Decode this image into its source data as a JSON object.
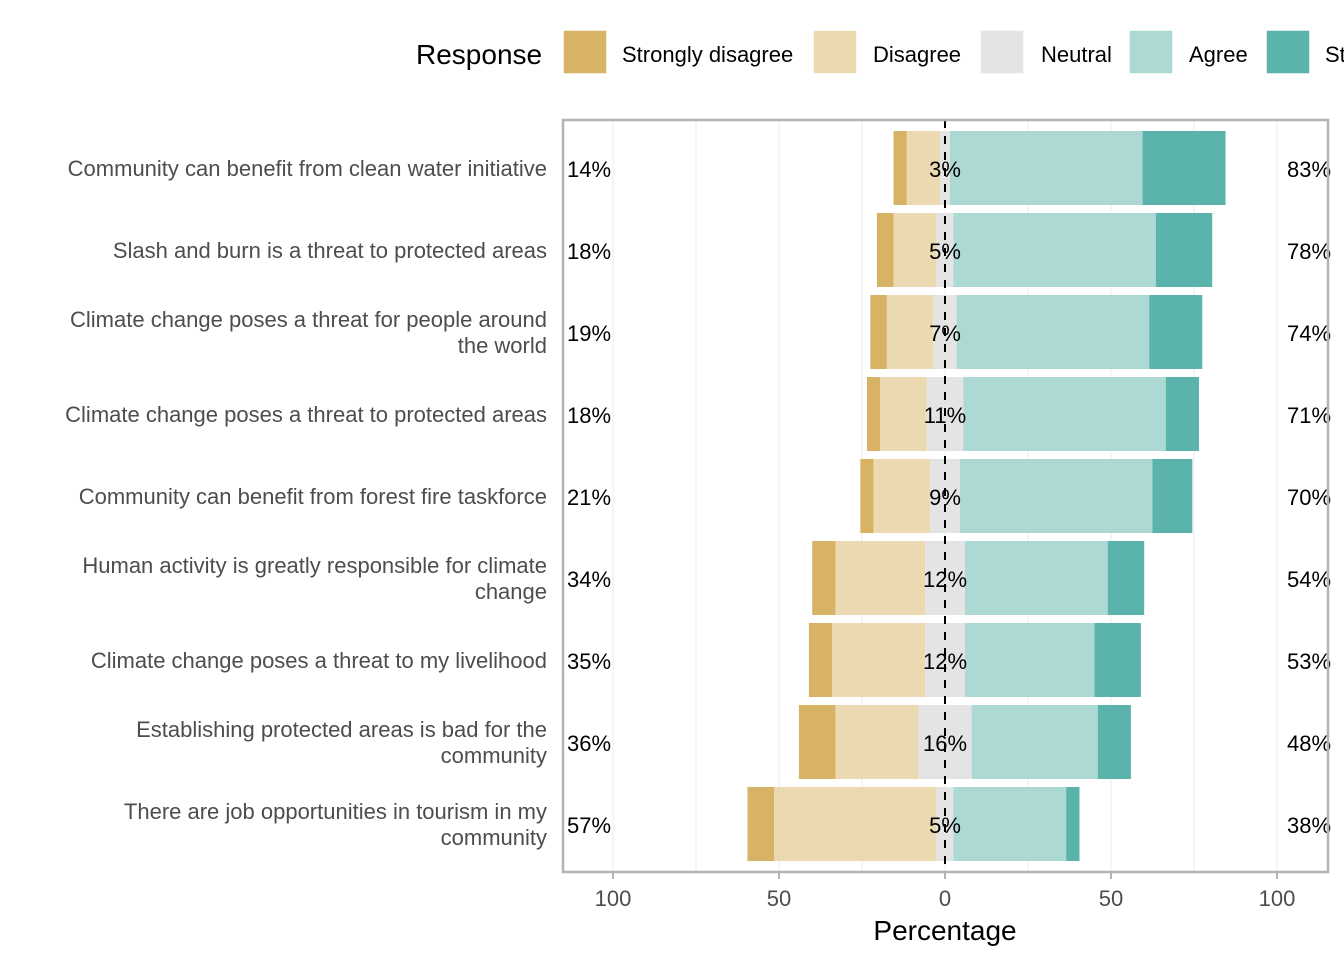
{
  "chart_data": {
    "type": "bar",
    "subtype": "diverging-stacked-likert",
    "xlabel": "Percentage",
    "x_ticks": [
      "100",
      "50",
      "0",
      "50",
      "100"
    ],
    "xlim": [
      -100,
      100
    ],
    "grid": true,
    "legend": {
      "title": "Response",
      "position": "top",
      "entries": [
        "Strongly disagree",
        "Disagree",
        "Neutral",
        "Agree",
        "St"
      ]
    },
    "colors": {
      "Strongly disagree": "#D8B365",
      "Disagree": "#EBD9B2",
      "Neutral": "#E4E4E4",
      "Agree": "#ADD9D5",
      "Strongly agree": "#5AB4AC"
    },
    "rows": [
      {
        "label": "Community can benefit from clean water initiative",
        "values": [
          4,
          10,
          3,
          58,
          25
        ],
        "low_label": "14%",
        "neutral_label": "3%",
        "high_label": "83%"
      },
      {
        "label": "Slash and burn is a threat to protected areas",
        "values": [
          5,
          13,
          5,
          61,
          17
        ],
        "low_label": "18%",
        "neutral_label": "5%",
        "high_label": "78%"
      },
      {
        "label": "Climate change poses a threat for people around the world",
        "values": [
          5,
          14,
          7,
          58,
          16
        ],
        "low_label": "19%",
        "neutral_label": "7%",
        "high_label": "74%"
      },
      {
        "label": "Climate change poses a threat to protected areas",
        "values": [
          4,
          14,
          11,
          61,
          10
        ],
        "low_label": "18%",
        "neutral_label": "11%",
        "high_label": "71%"
      },
      {
        "label": "Community can benefit from forest fire taskforce",
        "values": [
          4,
          17,
          9,
          58,
          12
        ],
        "low_label": "21%",
        "neutral_label": "9%",
        "high_label": "70%"
      },
      {
        "label": "Human activity is greatly responsible for climate change",
        "values": [
          7,
          27,
          12,
          43,
          11
        ],
        "low_label": "34%",
        "neutral_label": "12%",
        "high_label": "54%"
      },
      {
        "label": "Climate change poses a threat to my livelihood",
        "values": [
          7,
          28,
          12,
          39,
          14
        ],
        "low_label": "35%",
        "neutral_label": "12%",
        "high_label": "53%"
      },
      {
        "label": "Establishing protected areas is bad for the community",
        "values": [
          11,
          25,
          16,
          38,
          10
        ],
        "low_label": "36%",
        "neutral_label": "16%",
        "high_label": "48%"
      },
      {
        "label": "There are job opportunities in tourism in my community",
        "values": [
          8,
          49,
          5,
          34,
          4
        ],
        "low_label": "57%",
        "neutral_label": "5%",
        "high_label": "38%"
      }
    ]
  }
}
